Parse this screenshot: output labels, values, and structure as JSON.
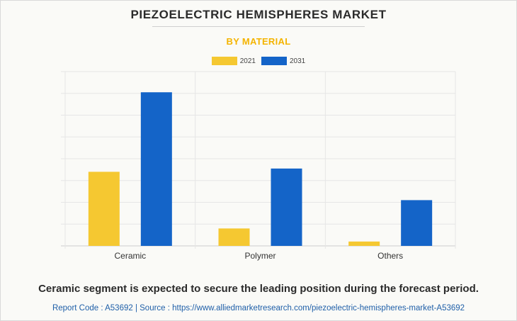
{
  "header": {
    "title": "PIEZOELECTRIC HEMISPHERES MARKET",
    "subtitle": "BY MATERIAL"
  },
  "legend": [
    {
      "label": "2021",
      "color": "#f5c831"
    },
    {
      "label": "2031",
      "color": "#1464c8"
    }
  ],
  "chart_data": {
    "type": "bar",
    "categories": [
      "Ceramic",
      "Polymer",
      "Others"
    ],
    "series": [
      {
        "name": "2021",
        "values": [
          3.4,
          0.8,
          0.2
        ],
        "color": "#f5c831"
      },
      {
        "name": "2031",
        "values": [
          7.05,
          3.55,
          2.1
        ],
        "color": "#1464c8"
      }
    ],
    "ylim": [
      0,
      8
    ],
    "grid": true,
    "legend_position": "top-center"
  },
  "footer": {
    "statement": "Ceramic segment is expected to secure the leading position during the forecast period.",
    "source": "Report Code : A53692  |  Source : https://www.alliedmarketresearch.com/piezoelectric-hemispheres-market-A53692"
  }
}
